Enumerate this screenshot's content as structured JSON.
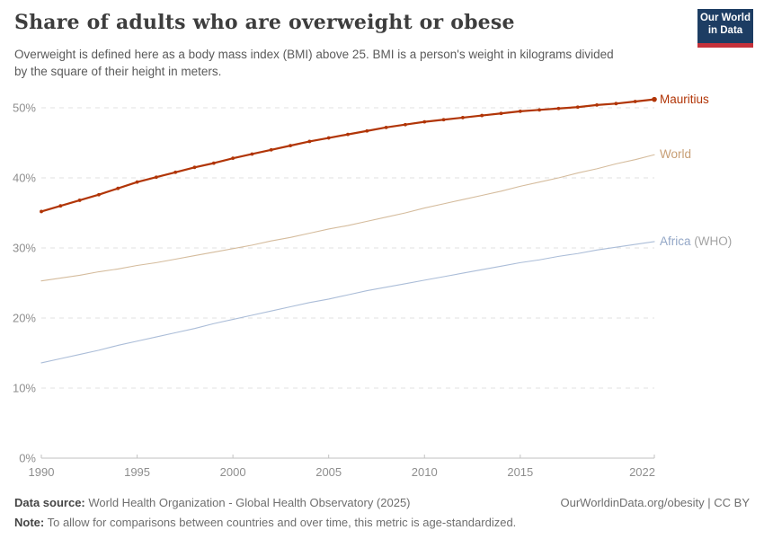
{
  "header": {
    "title": "Share of adults who are overweight or obese",
    "subtitle_lines": [
      "Overweight is defined here as a body mass index (BMI) above 25. BMI is a person's weight in kilograms divided",
      "by the square of their height in meters."
    ],
    "logo": {
      "line1": "Our World",
      "line2": "in Data",
      "bg_color": "#1d3d63",
      "stripe_color": "#c5313a"
    }
  },
  "chart_data": {
    "type": "line",
    "title": "Share of adults who are overweight or obese",
    "xlabel": "",
    "ylabel": "",
    "x_range": [
      1990,
      2022
    ],
    "y_range": [
      0,
      52
    ],
    "grid": "horizontal-dashed",
    "legend_position": "right-of-line-ends",
    "x": [
      1990,
      1991,
      1992,
      1993,
      1994,
      1995,
      1996,
      1997,
      1998,
      1999,
      2000,
      2001,
      2002,
      2003,
      2004,
      2005,
      2006,
      2007,
      2008,
      2009,
      2010,
      2011,
      2012,
      2013,
      2014,
      2015,
      2016,
      2017,
      2018,
      2019,
      2020,
      2021,
      2022
    ],
    "x_ticks": [
      {
        "value": 1990,
        "label": "1990"
      },
      {
        "value": 1995,
        "label": "1995"
      },
      {
        "value": 2000,
        "label": "2000"
      },
      {
        "value": 2005,
        "label": "2005"
      },
      {
        "value": 2010,
        "label": "2010"
      },
      {
        "value": 2015,
        "label": "2015"
      },
      {
        "value": 2022,
        "label": "2022"
      }
    ],
    "y_ticks": [
      {
        "value": 0,
        "label": "0%"
      },
      {
        "value": 10,
        "label": "10%"
      },
      {
        "value": 20,
        "label": "20%"
      },
      {
        "value": 30,
        "label": "30%"
      },
      {
        "value": 40,
        "label": "40%"
      },
      {
        "value": 50,
        "label": "50%"
      }
    ],
    "series": [
      {
        "name": "Mauritius",
        "label_main": "Mauritius",
        "label_suffix": "",
        "color": "#b13507",
        "label_color": "#b13507",
        "suffix_color": "#b13507",
        "highlight": true,
        "markers": true,
        "values": [
          35.2,
          36.0,
          36.8,
          37.6,
          38.5,
          39.4,
          40.1,
          40.8,
          41.5,
          42.1,
          42.8,
          43.4,
          44.0,
          44.6,
          45.2,
          45.7,
          46.2,
          46.7,
          47.2,
          47.6,
          48.0,
          48.3,
          48.6,
          48.9,
          49.2,
          49.5,
          49.7,
          49.9,
          50.1,
          50.4,
          50.6,
          50.9,
          51.2
        ]
      },
      {
        "name": "World",
        "label_main": "World",
        "label_suffix": "",
        "color": "#d5bc9d",
        "label_color": "#c89f76",
        "suffix_color": "#c89f76",
        "highlight": false,
        "markers": false,
        "values": [
          25.3,
          25.7,
          26.1,
          26.6,
          27.0,
          27.5,
          27.9,
          28.4,
          28.9,
          29.4,
          29.9,
          30.4,
          31.0,
          31.5,
          32.1,
          32.7,
          33.2,
          33.8,
          34.4,
          35.0,
          35.7,
          36.3,
          36.9,
          37.5,
          38.1,
          38.8,
          39.4,
          40.0,
          40.7,
          41.3,
          42.0,
          42.6,
          43.3
        ]
      },
      {
        "name": "Africa (WHO)",
        "label_main": "Africa",
        "label_suffix": " (WHO)",
        "color": "#abbdd8",
        "label_color": "#93a7c7",
        "suffix_color": "#a3a3a3",
        "highlight": false,
        "markers": false,
        "values": [
          13.6,
          14.2,
          14.8,
          15.4,
          16.1,
          16.7,
          17.3,
          17.9,
          18.5,
          19.2,
          19.8,
          20.4,
          21.0,
          21.6,
          22.2,
          22.7,
          23.3,
          23.9,
          24.4,
          24.9,
          25.4,
          25.9,
          26.4,
          26.9,
          27.4,
          27.9,
          28.3,
          28.8,
          29.2,
          29.7,
          30.1,
          30.5,
          30.9
        ]
      }
    ]
  },
  "footer": {
    "datasource_label": "Data source:",
    "datasource_text": " World Health Organization - Global Health Observatory (2025)",
    "note_label": "Note:",
    "note_text": " To allow for comparisons between countries and over time, this metric is age-standardized.",
    "right_text": "OurWorldinData.org/obesity | CC BY"
  }
}
